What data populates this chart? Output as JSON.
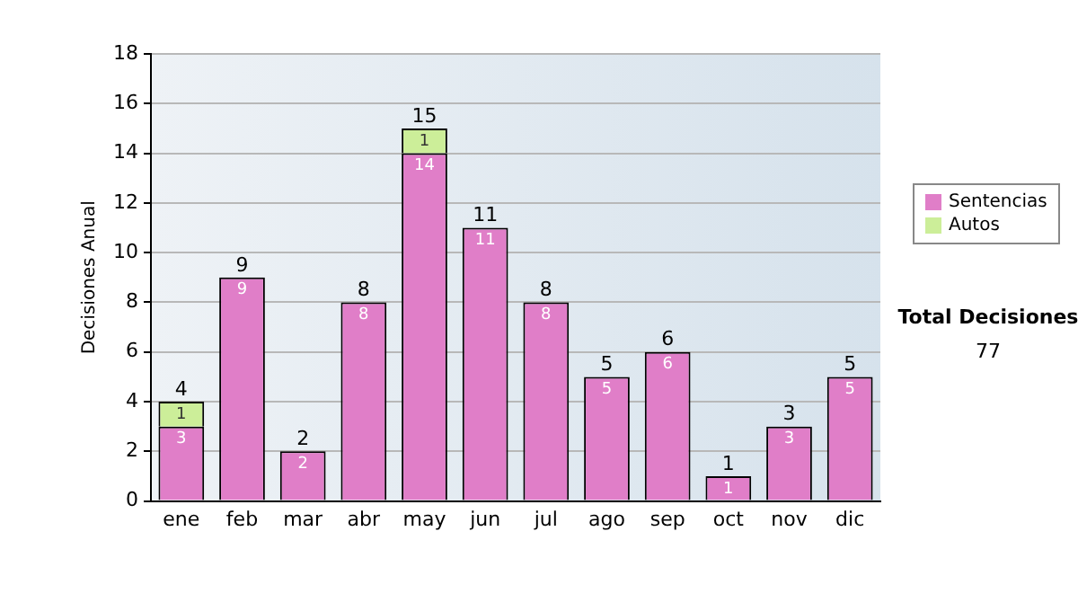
{
  "chart_data": {
    "type": "bar",
    "stacked": true,
    "ylabel": "Decisiones Anual",
    "categories": [
      "ene",
      "feb",
      "mar",
      "abr",
      "may",
      "jun",
      "jul",
      "ago",
      "sep",
      "oct",
      "nov",
      "dic"
    ],
    "series": [
      {
        "name": "Sentencias",
        "color": "#e07ec8",
        "values": [
          3,
          9,
          2,
          8,
          14,
          11,
          8,
          5,
          6,
          1,
          3,
          5
        ]
      },
      {
        "name": "Autos",
        "color": "#ccee99",
        "values": [
          1,
          null,
          null,
          null,
          1,
          null,
          null,
          null,
          null,
          null,
          null,
          null
        ]
      }
    ],
    "totals": [
      "4",
      "9",
      "2",
      "8",
      "15",
      "11",
      "8",
      "5",
      "6",
      "1",
      "3",
      "5"
    ],
    "data_labels": true,
    "ylim": [
      0,
      18
    ],
    "yticks": [
      0,
      2,
      4,
      6,
      8,
      10,
      12,
      14,
      16,
      18
    ],
    "grid": "y",
    "legend": "right",
    "annotations": [
      "Total Decisiones",
      "77"
    ]
  }
}
